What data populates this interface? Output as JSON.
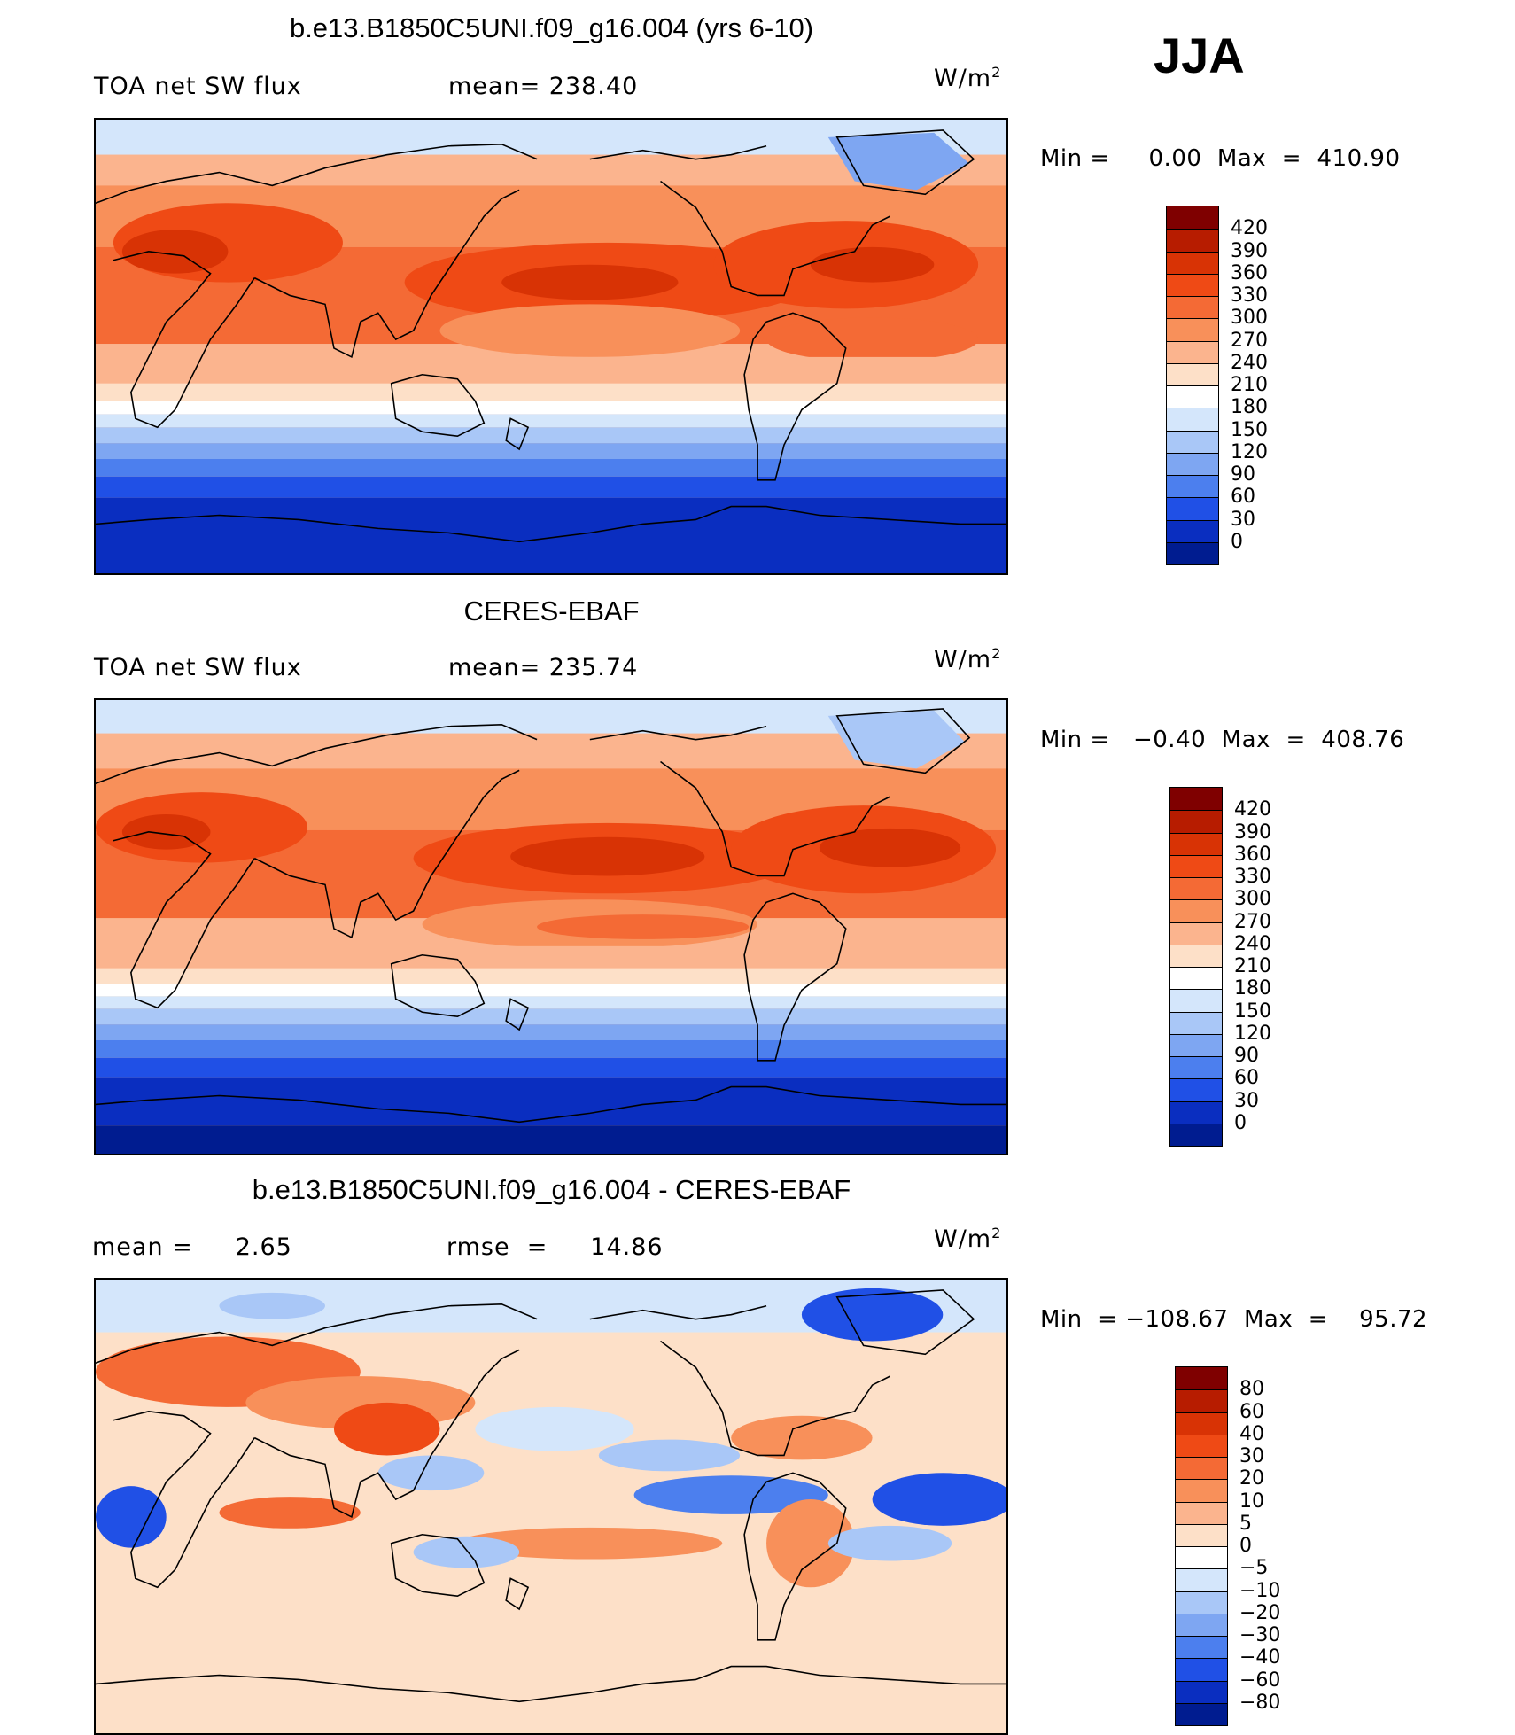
{
  "season": "JJA",
  "panels": [
    {
      "id": "model",
      "title": "b.e13.B1850C5UNI.f09_g16.004 (yrs 6-10)",
      "left_label": "TOA net SW flux",
      "center_label": "mean=  238.40",
      "units": "W/m",
      "units_sup": "2",
      "minmax": "Min =     0.00  Max  =  410.90",
      "colorbar_levels": [
        "420",
        "390",
        "360",
        "330",
        "300",
        "270",
        "240",
        "210",
        "180",
        "150",
        "120",
        "90",
        "60",
        "30",
        "0"
      ],
      "colorbar_colors": [
        "#7f0000",
        "#b71c00",
        "#d83305",
        "#ef4a15",
        "#f46a35",
        "#f8905a",
        "#fbb48e",
        "#fde0c8",
        "#ffffff",
        "#d4e6fb",
        "#a9c7f7",
        "#7ea6f2",
        "#4c7fee",
        "#2050e6",
        "#0a2ec0",
        "#001c90"
      ]
    },
    {
      "id": "obs",
      "title": "CERES-EBAF",
      "left_label": "TOA net SW flux",
      "center_label": "mean=  235.74",
      "units": "W/m",
      "units_sup": "2",
      "minmax": "Min =   −0.40  Max  =  408.76",
      "colorbar_levels": [
        "420",
        "390",
        "360",
        "330",
        "300",
        "270",
        "240",
        "210",
        "180",
        "150",
        "120",
        "90",
        "60",
        "30",
        "0"
      ],
      "colorbar_colors": [
        "#7f0000",
        "#b71c00",
        "#d83305",
        "#ef4a15",
        "#f46a35",
        "#f8905a",
        "#fbb48e",
        "#fde0c8",
        "#ffffff",
        "#d4e6fb",
        "#a9c7f7",
        "#7ea6f2",
        "#4c7fee",
        "#2050e6",
        "#0a2ec0",
        "#001c90"
      ]
    },
    {
      "id": "diff",
      "title": "b.e13.B1850C5UNI.f09_g16.004 - CERES-EBAF",
      "left_label": "mean =     2.65",
      "center_label": "rmse  =     14.86",
      "units": "W/m",
      "units_sup": "2",
      "minmax": "Min  = −108.67  Max  =    95.72",
      "colorbar_levels": [
        "80",
        "60",
        "40",
        "30",
        "20",
        "10",
        "5",
        "0",
        "−5",
        "−10",
        "−20",
        "−30",
        "−40",
        "−60",
        "−80"
      ],
      "colorbar_colors": [
        "#7f0000",
        "#b71c00",
        "#d83305",
        "#ef4a15",
        "#f46a35",
        "#f8905a",
        "#fbb48e",
        "#fde0c8",
        "#ffffff",
        "#d4e6fb",
        "#a9c7f7",
        "#7ea6f2",
        "#4c7fee",
        "#2050e6",
        "#0a2ec0",
        "#001c90"
      ]
    }
  ],
  "chart_data": [
    {
      "type": "heatmap",
      "title": "b.e13.B1850C5UNI.f09_g16.004 (yrs 6-10)",
      "subtitle": "TOA net SW flux",
      "units": "W/m2",
      "mean": 238.4,
      "min": 0.0,
      "max": 410.9,
      "levels": [
        0,
        30,
        60,
        90,
        120,
        150,
        180,
        210,
        240,
        270,
        300,
        330,
        360,
        390,
        420
      ]
    },
    {
      "type": "heatmap",
      "title": "CERES-EBAF",
      "subtitle": "TOA net SW flux",
      "units": "W/m2",
      "mean": 235.74,
      "min": -0.4,
      "max": 408.76,
      "levels": [
        0,
        30,
        60,
        90,
        120,
        150,
        180,
        210,
        240,
        270,
        300,
        330,
        360,
        390,
        420
      ]
    },
    {
      "type": "heatmap",
      "title": "b.e13.B1850C5UNI.f09_g16.004 - CERES-EBAF",
      "units": "W/m2",
      "mean": 2.65,
      "rmse": 14.86,
      "min": -108.67,
      "max": 95.72,
      "levels": [
        -80,
        -60,
        -40,
        -30,
        -20,
        -10,
        -5,
        0,
        5,
        10,
        20,
        30,
        40,
        60,
        80
      ]
    }
  ]
}
